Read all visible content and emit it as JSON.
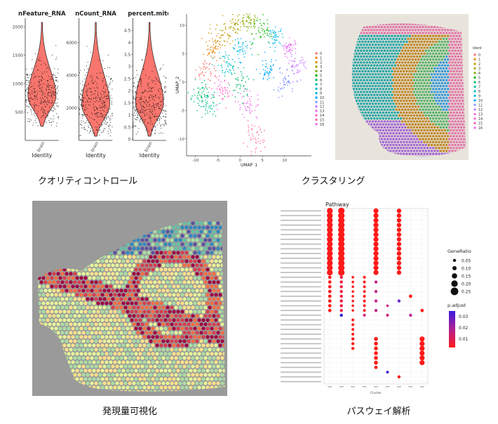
{
  "captions": [
    "クオリティコントロール",
    "クラスタリング",
    "発現量可視化",
    "パスウェイ解析"
  ],
  "chart_data": [
    {
      "type": "violin",
      "panels": [
        {
          "title": "nFeature_RNA",
          "ylim": [
            0,
            2150
          ],
          "yticks": [
            500,
            1000,
            1500,
            2000
          ],
          "center": 780
        },
        {
          "title": "nCount_RNA",
          "ylim": [
            0,
            7500
          ],
          "yticks": [
            2000,
            4000,
            6000
          ],
          "center": 2200
        },
        {
          "title": "percent.mito",
          "ylim": [
            -0.05,
            5.0
          ],
          "yticks": [
            0.0,
            0.5,
            1.0,
            1.5,
            2.0,
            2.5,
            3.0,
            3.5,
            4.0,
            4.5
          ],
          "center": 1.5
        }
      ],
      "xlabel": "Identity",
      "xtick": "brain",
      "violin_color": "#f8766d"
    },
    {
      "type": "scatter",
      "xlabel": "UMAP_1",
      "ylabel": "UMAP_2",
      "xticks": [
        -10,
        -5,
        0,
        5,
        10
      ],
      "yticks": [
        -10,
        -5,
        0,
        5,
        10
      ],
      "xlim": [
        -12,
        16
      ],
      "ylim": [
        -13,
        12
      ],
      "legend": [
        "0",
        "1",
        "2",
        "3",
        "4",
        "5",
        "6",
        "7",
        "8",
        "9",
        "10",
        "11",
        "12",
        "13",
        "14",
        "15",
        "16"
      ],
      "colors": [
        "#f8766d",
        "#e68613",
        "#cd9600",
        "#aba300",
        "#7cae00",
        "#0cb702",
        "#00be67",
        "#00c19a",
        "#00bfc4",
        "#00b8e7",
        "#00a9ff",
        "#8494ff",
        "#c77cff",
        "#ed68ed",
        "#ff61cc",
        "#ff68a1",
        "#e76bf3"
      ]
    },
    {
      "type": "spatial",
      "legend_title": "ident",
      "legend": [
        "0",
        "1",
        "2",
        "3",
        "4",
        "5",
        "6",
        "7",
        "8",
        "9",
        "10",
        "11",
        "12",
        "13",
        "14",
        "15",
        "16"
      ]
    },
    {
      "type": "spatial-heatmap"
    },
    {
      "type": "dotplot",
      "title": "Pathway",
      "xlabel": "Cluster",
      "size_legend_title": "GeneRatio",
      "size_legend": [
        "0.05",
        "0.10",
        "0.15",
        "0.20",
        "0.25"
      ],
      "color_legend_title": "p.adjust",
      "color_legend": [
        "0.03",
        "0.02",
        "0.01"
      ]
    }
  ]
}
